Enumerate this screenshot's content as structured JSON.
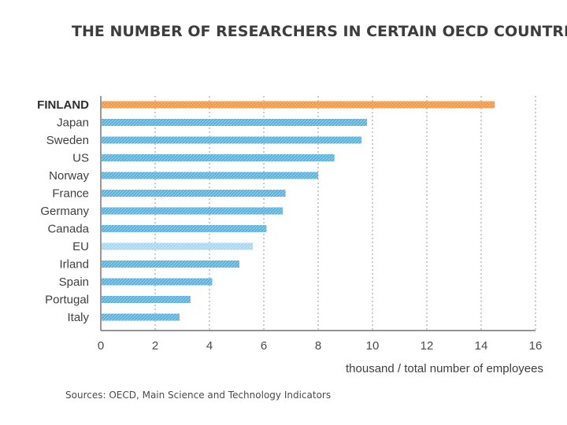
{
  "chart_data": {
    "type": "bar",
    "orientation": "horizontal",
    "title": "THE NUMBER OF RESEARCHERS IN CERTAIN OECD COUNTRIES",
    "categories": [
      "FINLAND",
      "Japan",
      "Sweden",
      "US",
      "Norway",
      "France",
      "Germany",
      "Canada",
      "EU",
      "Irland",
      "Spain",
      "Portugal",
      "Italy"
    ],
    "values": [
      14.5,
      9.8,
      9.6,
      8.6,
      8.0,
      6.8,
      6.7,
      6.1,
      5.6,
      5.1,
      4.1,
      3.3,
      2.9
    ],
    "highlight": "FINLAND",
    "xlim": [
      0,
      16
    ],
    "xticks": [
      "0",
      "2",
      "4",
      "6",
      "8",
      "10",
      "12",
      "14",
      "16"
    ],
    "xlabel": "thousand / total number of employees",
    "ylabel": "",
    "grid": "vertical dotted",
    "source": "Sources: OECD, Main Science and Technology Indicators",
    "colors": {
      "highlight": "#f0994a",
      "bar": "#5fb0d8",
      "eu_bar": "#a9d6ee",
      "axis": "#555555",
      "grid": "#9a9a9a"
    }
  }
}
